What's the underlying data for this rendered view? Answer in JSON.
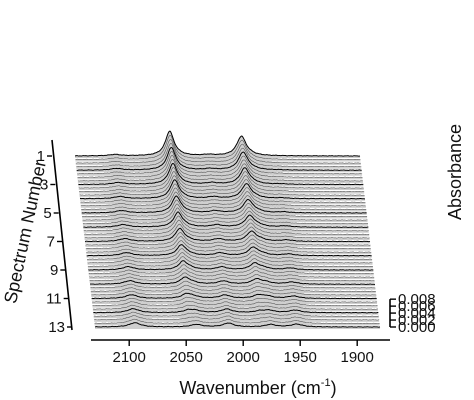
{
  "chart_data": {
    "type": "waterfall-3d-line",
    "title": "",
    "xlabel": "Wavenumber (cm",
    "xlabel_unit_sup": "-1",
    "xlabel_close": ")",
    "xlim": [
      2130,
      1880
    ],
    "x_ticks": [
      2100,
      2050,
      2000,
      1950,
      1900
    ],
    "x_tick_labels": [
      "2100",
      "2050",
      "2000",
      "1950",
      "1900"
    ],
    "ylabel": "Absorbance",
    "ylim": [
      0.0,
      0.008
    ],
    "y_ticks": [
      0.0,
      0.002,
      0.004,
      0.006,
      0.008
    ],
    "y_tick_labels": [
      "0.000",
      "0.002",
      "0.004",
      "0.006",
      "0.008"
    ],
    "zlabel": "Spectrum Number",
    "z_ticks": [
      1,
      3,
      5,
      7,
      9,
      11,
      13
    ],
    "z_tick_labels": [
      "1",
      "3",
      "5",
      "7",
      "9",
      "11",
      "13"
    ],
    "spectrum_count": 13,
    "traces_per_spectrum": 4,
    "line_color": "#555555",
    "highlight_color": "#000000",
    "fill_color": "#cfcfcf",
    "bands": [
      {
        "center": 2047,
        "width": 4.5,
        "amp_first": 0.007,
        "amp_last": 0.0
      },
      {
        "center": 1984,
        "width": 5.0,
        "amp_first": 0.0056,
        "amp_last": 0.0
      },
      {
        "center": 2095,
        "width": 6.0,
        "amp_first": 0.0004,
        "amp_last": 0.0012
      },
      {
        "center": 2013,
        "width": 5.5,
        "amp_first": 0.0003,
        "amp_last": 0.0011
      },
      {
        "center": 2041,
        "width": 6.0,
        "amp_first": 0.0002,
        "amp_last": 0.0007
      },
      {
        "center": 1976,
        "width": 5.5,
        "amp_first": 0.0002,
        "amp_last": 0.0007
      },
      {
        "center": 1953,
        "width": 6.0,
        "amp_first": 0.0,
        "amp_last": 0.0008
      }
    ]
  }
}
